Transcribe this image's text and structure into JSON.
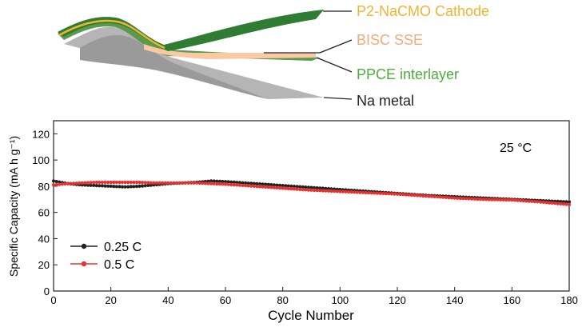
{
  "schematic": {
    "labels": {
      "cathode": "P2-NaCMO Cathode",
      "sse": "BISC SSE",
      "interlayer": "PPCE interlayer",
      "metal": "Na metal"
    },
    "colors": {
      "cathode": "#f2b430",
      "sse": "#f5a97a",
      "interlayer": "#4caf3a",
      "metal": "#222222",
      "green_dark": "#2e7d32",
      "green_mid": "#5a9a4a",
      "green_light": "#8fbf7a",
      "gray": "#b5b5b5",
      "sse_fill": "#f8c9a2"
    }
  },
  "chart_data": {
    "type": "line",
    "xlabel": "Cycle Number",
    "ylabel": "Specific Capacity (mA h g⁻¹)",
    "annotation": "25 °C",
    "xlim": [
      0,
      180
    ],
    "ylim": [
      0,
      130
    ],
    "xticks": [
      0,
      20,
      40,
      60,
      80,
      100,
      120,
      140,
      160,
      180
    ],
    "yticks": [
      0,
      20,
      40,
      60,
      80,
      100,
      120
    ],
    "legend_position": "bottom-left",
    "series": [
      {
        "name": "0.25 C",
        "color": "#222222",
        "x": [
          0,
          5,
          10,
          15,
          20,
          25,
          30,
          35,
          40,
          45,
          50,
          55,
          60,
          70,
          80,
          90,
          100,
          110,
          120,
          130,
          140,
          150,
          160,
          170,
          180
        ],
        "values": [
          84,
          82,
          81,
          80.5,
          80,
          79.5,
          80,
          81,
          82,
          82.5,
          83,
          84,
          83.5,
          82,
          80.5,
          79,
          77.5,
          76,
          74.5,
          73,
          72,
          71,
          70,
          69,
          68
        ]
      },
      {
        "name": "0.5 C",
        "color": "#e8302f",
        "x": [
          0,
          5,
          10,
          15,
          20,
          25,
          30,
          35,
          40,
          45,
          50,
          55,
          60,
          70,
          80,
          90,
          100,
          110,
          120,
          130,
          140,
          150,
          160,
          170,
          180
        ],
        "values": [
          81,
          82,
          82.5,
          83,
          83,
          83,
          83,
          82.5,
          82.5,
          82.5,
          82.5,
          82,
          81.5,
          80,
          78.5,
          77,
          76,
          75,
          74,
          72.5,
          71,
          70,
          69.5,
          68,
          66
        ]
      }
    ]
  }
}
